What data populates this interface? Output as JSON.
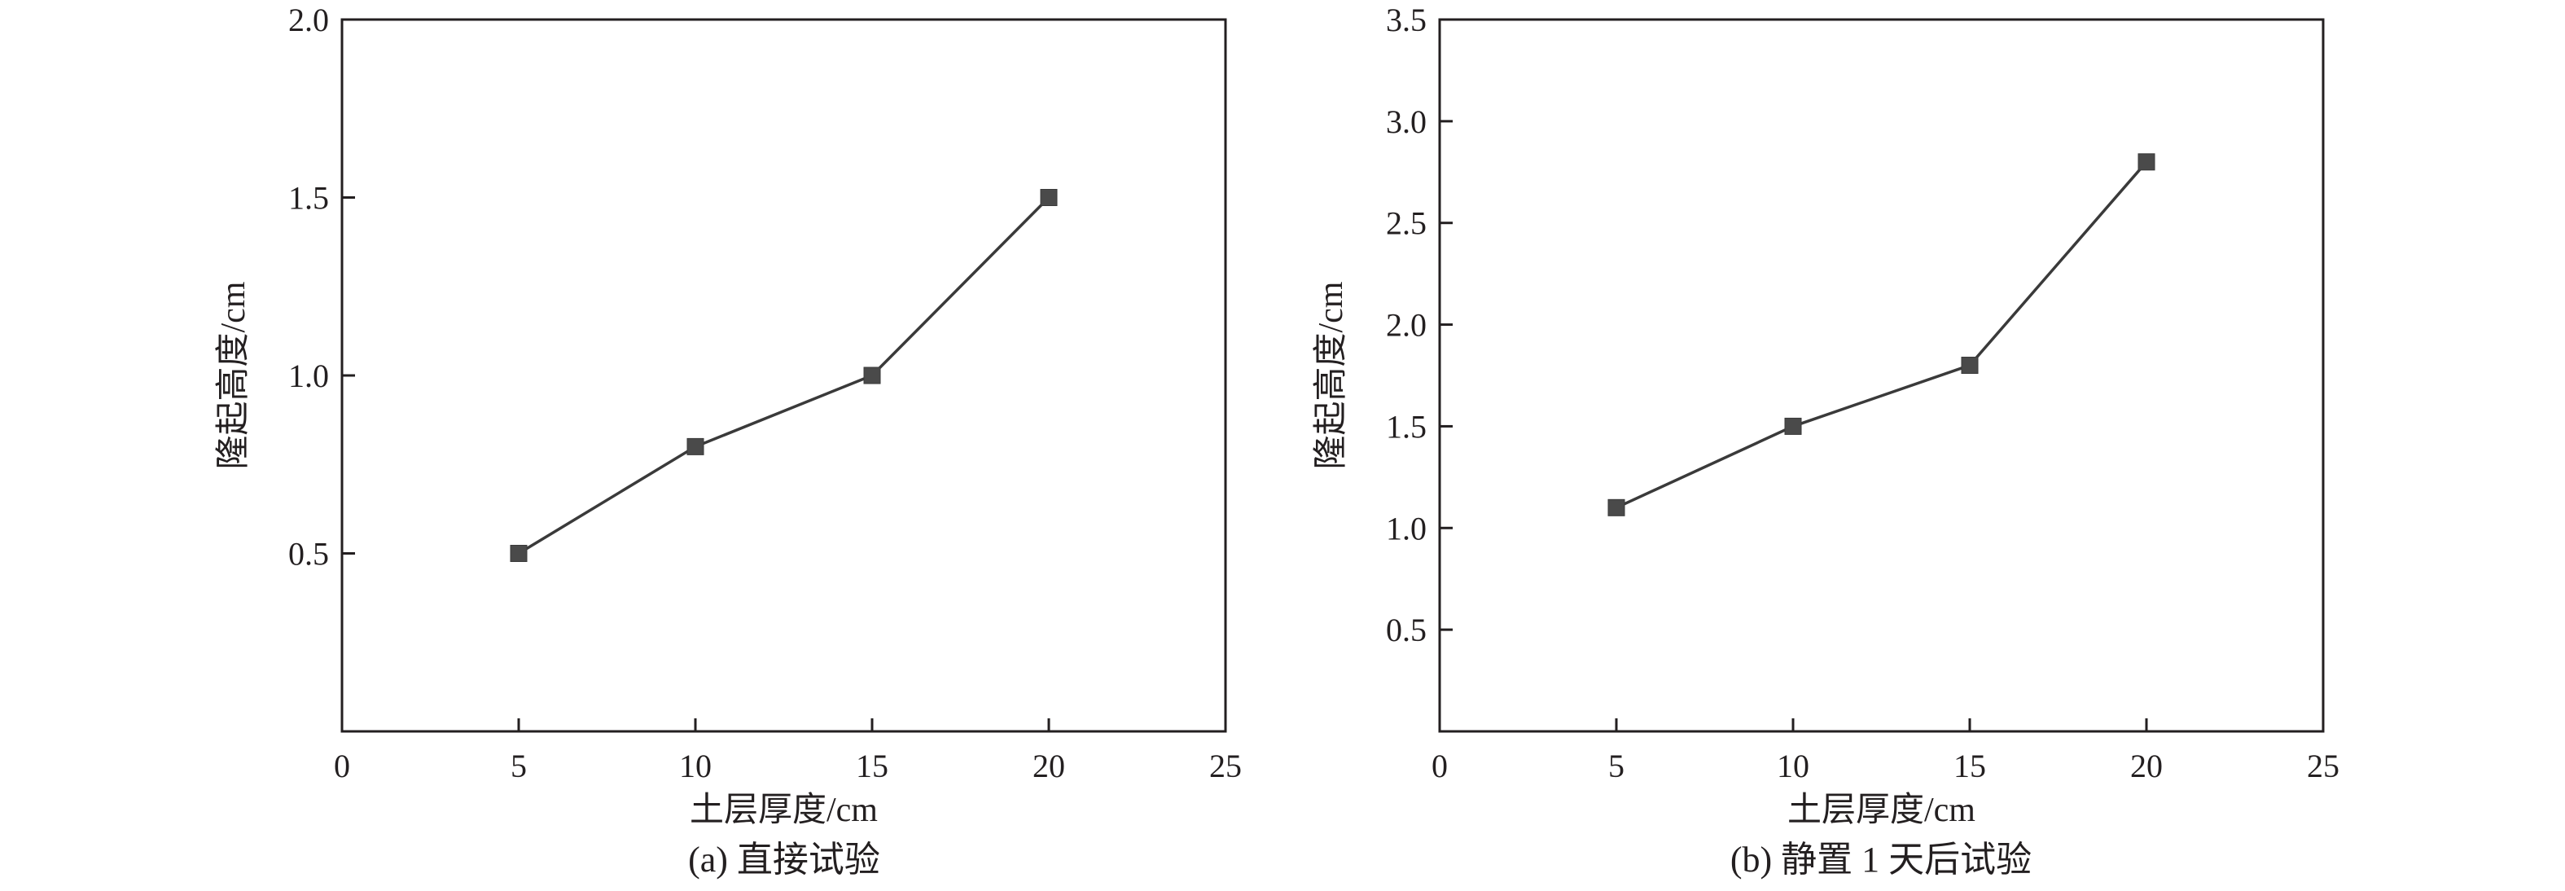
{
  "colors": {
    "axis": "#231f20",
    "line": "#3a3a3a",
    "marker": "#4a4a4a"
  },
  "chart_data": [
    {
      "type": "line",
      "caption": "(a) 直接试验",
      "xlabel": "土层厚度/cm",
      "ylabel": "隆起高度/cm",
      "xlim": [
        0,
        25
      ],
      "ylim": [
        0,
        2.0
      ],
      "xticks": [
        "0",
        "5",
        "10",
        "15",
        "20",
        "25"
      ],
      "yticks": [
        "0.5",
        "1.0",
        "1.5",
        "2.0"
      ],
      "marker": "square",
      "x": [
        5,
        10,
        15,
        20
      ],
      "y": [
        0.5,
        0.8,
        1.0,
        1.5
      ]
    },
    {
      "type": "line",
      "caption": "(b) 静置 1 天后试验",
      "xlabel": "土层厚度/cm",
      "ylabel": "隆起高度/cm",
      "xlim": [
        0,
        25
      ],
      "ylim": [
        0,
        3.5
      ],
      "xticks": [
        "0",
        "5",
        "10",
        "15",
        "20",
        "25"
      ],
      "yticks": [
        "0.5",
        "1.0",
        "1.5",
        "2.0",
        "2.5",
        "3.0",
        "3.5"
      ],
      "marker": "square",
      "x": [
        5,
        10,
        15,
        20
      ],
      "y": [
        1.1,
        1.5,
        1.8,
        2.8
      ]
    }
  ]
}
